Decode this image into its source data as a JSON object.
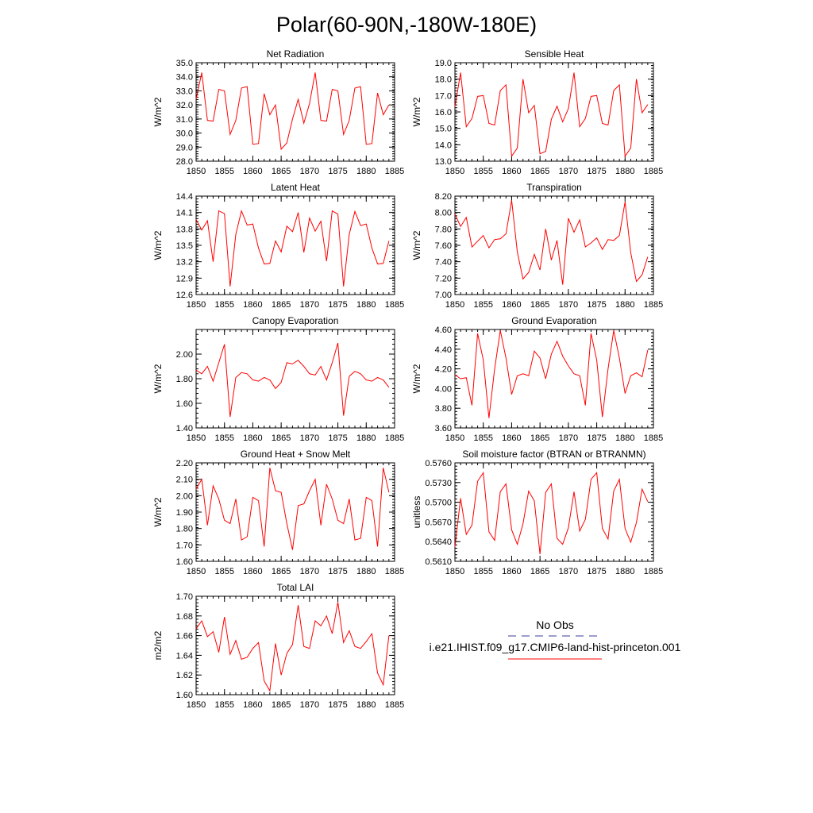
{
  "figure": {
    "title": "Polar(60-90N,-180W-180E)",
    "legend": {
      "obs_label": "No Obs",
      "obs_color": "#3b3b9b",
      "run_label": "i.e21.IHIST.f09_g17.CMIP6-land-hist-princeton.001",
      "run_color": "#ff0000",
      "placement": "bottom-right"
    }
  },
  "chart_data": [
    {
      "type": "line",
      "title": "Net Radiation",
      "ylabel": "W/m^2",
      "xlim": [
        1850,
        1885
      ],
      "ylim": [
        28.0,
        35.0
      ],
      "xticks": [
        "1850",
        "1855",
        "1860",
        "1865",
        "1870",
        "1875",
        "1880",
        "1885"
      ],
      "yticks": [
        "28.0",
        "29.0",
        "30.0",
        "31.0",
        "32.0",
        "33.0",
        "34.0",
        "35.0"
      ],
      "x": [
        1850,
        1851,
        1852,
        1853,
        1854,
        1855,
        1856,
        1857,
        1858,
        1859,
        1860,
        1861,
        1862,
        1863,
        1864,
        1865,
        1866,
        1867,
        1868,
        1869,
        1870,
        1871,
        1872,
        1873,
        1874,
        1875,
        1876,
        1877,
        1878,
        1879,
        1880,
        1881,
        1882,
        1883,
        1884
      ],
      "series": [
        {
          "values": [
            32.4,
            34.3,
            30.9,
            30.85,
            33.1,
            33.0,
            29.9,
            30.9,
            33.2,
            33.3,
            29.2,
            29.25,
            32.8,
            31.3,
            32.0,
            28.85,
            29.3,
            31.0,
            32.4,
            30.7,
            32.1,
            34.3,
            30.9,
            30.85,
            33.1,
            33.0,
            29.9,
            30.9,
            33.2,
            33.3,
            29.2,
            29.25,
            32.85,
            31.3,
            32.0
          ],
          "color": "#ff0000"
        }
      ]
    },
    {
      "type": "line",
      "title": "Sensible Heat",
      "ylabel": "W/m^2",
      "xlim": [
        1850,
        1885
      ],
      "ylim": [
        13.0,
        19.0
      ],
      "xticks": [
        "1850",
        "1855",
        "1860",
        "1865",
        "1870",
        "1875",
        "1880",
        "1885"
      ],
      "yticks": [
        "13.0",
        "14.0",
        "15.0",
        "16.0",
        "17.0",
        "18.0",
        "19.0"
      ],
      "x": [
        1850,
        1851,
        1852,
        1853,
        1854,
        1855,
        1856,
        1857,
        1858,
        1859,
        1860,
        1861,
        1862,
        1863,
        1864,
        1865,
        1866,
        1867,
        1868,
        1869,
        1870,
        1871,
        1872,
        1873,
        1874,
        1875,
        1876,
        1877,
        1878,
        1879,
        1880,
        1881,
        1882,
        1883,
        1884
      ],
      "series": [
        {
          "values": [
            16.3,
            18.4,
            15.1,
            15.6,
            16.95,
            17.0,
            15.3,
            15.2,
            17.3,
            17.65,
            13.3,
            13.8,
            18.0,
            15.95,
            16.4,
            13.45,
            13.6,
            15.55,
            16.35,
            15.4,
            16.2,
            18.4,
            15.1,
            15.6,
            16.95,
            17.0,
            15.3,
            15.2,
            17.3,
            17.65,
            13.3,
            13.8,
            18.0,
            15.95,
            16.45
          ],
          "color": "#ff0000"
        }
      ]
    },
    {
      "type": "line",
      "title": "Latent Heat",
      "ylabel": "W/m^2",
      "xlim": [
        1850,
        1885
      ],
      "ylim": [
        12.6,
        14.4
      ],
      "xticks": [
        "1850",
        "1855",
        "1860",
        "1865",
        "1870",
        "1875",
        "1880",
        "1885"
      ],
      "yticks": [
        "12.6",
        "12.9",
        "13.2",
        "13.5",
        "13.8",
        "14.1",
        "14.4"
      ],
      "x": [
        1850,
        1851,
        1852,
        1853,
        1854,
        1855,
        1856,
        1857,
        1858,
        1859,
        1860,
        1861,
        1862,
        1863,
        1864,
        1865,
        1866,
        1867,
        1868,
        1869,
        1870,
        1871,
        1872,
        1873,
        1874,
        1875,
        1876,
        1877,
        1878,
        1879,
        1880,
        1881,
        1882,
        1883,
        1884
      ],
      "series": [
        {
          "values": [
            13.97,
            13.78,
            13.95,
            13.2,
            14.13,
            14.08,
            12.75,
            13.7,
            14.13,
            13.87,
            13.89,
            13.45,
            13.16,
            13.17,
            13.58,
            13.38,
            13.85,
            13.75,
            14.1,
            13.37,
            14.0,
            13.76,
            13.94,
            13.21,
            14.13,
            14.07,
            12.75,
            13.7,
            14.12,
            13.86,
            13.89,
            13.45,
            13.16,
            13.17,
            13.58
          ],
          "color": "#ff0000"
        }
      ]
    },
    {
      "type": "line",
      "title": "Transpiration",
      "ylabel": "W/m^2",
      "xlim": [
        1850,
        1885
      ],
      "ylim": [
        7.0,
        8.2
      ],
      "xticks": [
        "1850",
        "1855",
        "1860",
        "1865",
        "1870",
        "1875",
        "1880",
        "1885"
      ],
      "yticks": [
        "7.00",
        "7.20",
        "7.40",
        "7.60",
        "7.80",
        "8.00",
        "8.20"
      ],
      "x": [
        1850,
        1851,
        1852,
        1853,
        1854,
        1855,
        1856,
        1857,
        1858,
        1859,
        1860,
        1861,
        1862,
        1863,
        1864,
        1865,
        1866,
        1867,
        1868,
        1869,
        1870,
        1871,
        1872,
        1873,
        1874,
        1875,
        1876,
        1877,
        1878,
        1879,
        1880,
        1881,
        1882,
        1883,
        1884
      ],
      "series": [
        {
          "values": [
            7.98,
            7.83,
            7.94,
            7.58,
            7.65,
            7.72,
            7.57,
            7.67,
            7.68,
            7.74,
            8.15,
            7.52,
            7.19,
            7.27,
            7.49,
            7.3,
            7.8,
            7.42,
            7.66,
            7.12,
            7.93,
            7.76,
            7.91,
            7.58,
            7.63,
            7.69,
            7.55,
            7.67,
            7.66,
            7.72,
            8.13,
            7.51,
            7.16,
            7.24,
            7.46
          ],
          "color": "#ff0000"
        }
      ]
    },
    {
      "type": "line",
      "title": "Canopy Evaporation",
      "ylabel": "W/m^2",
      "xlim": [
        1850,
        1885
      ],
      "ylim": [
        1.4,
        2.2
      ],
      "xticks": [
        "1850",
        "1855",
        "1860",
        "1865",
        "1870",
        "1875",
        "1880",
        "1885"
      ],
      "yticks": [
        "1.40",
        "1.60",
        "1.80",
        "2.00"
      ],
      "x": [
        1850,
        1851,
        1852,
        1853,
        1854,
        1855,
        1856,
        1857,
        1858,
        1859,
        1860,
        1861,
        1862,
        1863,
        1864,
        1865,
        1866,
        1867,
        1868,
        1869,
        1870,
        1871,
        1872,
        1873,
        1874,
        1875,
        1876,
        1877,
        1878,
        1879,
        1880,
        1881,
        1882,
        1883,
        1884
      ],
      "series": [
        {
          "values": [
            1.87,
            1.84,
            1.9,
            1.78,
            1.93,
            2.08,
            1.49,
            1.81,
            1.85,
            1.84,
            1.79,
            1.78,
            1.81,
            1.79,
            1.72,
            1.77,
            1.93,
            1.92,
            1.95,
            1.9,
            1.84,
            1.83,
            1.9,
            1.79,
            1.93,
            2.09,
            1.5,
            1.82,
            1.86,
            1.84,
            1.79,
            1.78,
            1.81,
            1.79,
            1.73
          ],
          "color": "#ff0000"
        }
      ]
    },
    {
      "type": "line",
      "title": "Ground Evaporation",
      "ylabel": "W/m^2",
      "xlim": [
        1850,
        1885
      ],
      "ylim": [
        3.6,
        4.6
      ],
      "xticks": [
        "1850",
        "1855",
        "1860",
        "1865",
        "1870",
        "1875",
        "1880",
        "1885"
      ],
      "yticks": [
        "3.60",
        "3.80",
        "4.00",
        "4.20",
        "4.40",
        "4.60"
      ],
      "x": [
        1850,
        1851,
        1852,
        1853,
        1854,
        1855,
        1856,
        1857,
        1858,
        1859,
        1860,
        1861,
        1862,
        1863,
        1864,
        1865,
        1866,
        1867,
        1868,
        1869,
        1870,
        1871,
        1872,
        1873,
        1874,
        1875,
        1876,
        1877,
        1878,
        1879,
        1880,
        1881,
        1882,
        1883,
        1884
      ],
      "series": [
        {
          "values": [
            4.14,
            4.1,
            4.11,
            3.83,
            4.56,
            4.29,
            3.7,
            4.2,
            4.59,
            4.31,
            3.94,
            4.13,
            4.15,
            4.13,
            4.38,
            4.31,
            4.1,
            4.35,
            4.48,
            4.33,
            4.23,
            4.15,
            4.13,
            3.83,
            4.56,
            4.29,
            3.71,
            4.2,
            4.59,
            4.31,
            3.95,
            4.13,
            4.16,
            4.12,
            4.39
          ],
          "color": "#ff0000"
        }
      ]
    },
    {
      "type": "line",
      "title": "Ground Heat + Snow Melt",
      "ylabel": "W/m^2",
      "xlim": [
        1850,
        1885
      ],
      "ylim": [
        1.6,
        2.2
      ],
      "xticks": [
        "1850",
        "1855",
        "1860",
        "1865",
        "1870",
        "1875",
        "1880",
        "1885"
      ],
      "yticks": [
        "1.60",
        "1.70",
        "1.80",
        "1.90",
        "2.00",
        "2.10",
        "2.20"
      ],
      "x": [
        1850,
        1851,
        1852,
        1853,
        1854,
        1855,
        1856,
        1857,
        1858,
        1859,
        1860,
        1861,
        1862,
        1863,
        1864,
        1865,
        1866,
        1867,
        1868,
        1869,
        1870,
        1871,
        1872,
        1873,
        1874,
        1875,
        1876,
        1877,
        1878,
        1879,
        1880,
        1881,
        1882,
        1883,
        1884
      ],
      "series": [
        {
          "values": [
            2.04,
            2.1,
            1.82,
            2.06,
            1.98,
            1.85,
            1.83,
            1.98,
            1.73,
            1.75,
            1.99,
            1.97,
            1.69,
            2.17,
            2.03,
            2.02,
            1.83,
            1.67,
            1.94,
            1.95,
            2.03,
            2.1,
            1.82,
            2.07,
            1.98,
            1.85,
            1.83,
            1.98,
            1.73,
            1.74,
            1.99,
            1.97,
            1.69,
            2.17,
            2.02
          ],
          "color": "#ff0000"
        }
      ]
    },
    {
      "type": "line",
      "title": "Soil moisture factor (BTRAN or BTRANMN)",
      "ylabel": "unitless",
      "xlim": [
        1850,
        1885
      ],
      "ylim": [
        0.561,
        0.576
      ],
      "xticks": [
        "1850",
        "1855",
        "1860",
        "1865",
        "1870",
        "1875",
        "1880",
        "1885"
      ],
      "yticks": [
        "0.5610",
        "0.5640",
        "0.5670",
        "0.5700",
        "0.5730",
        "0.5760"
      ],
      "x": [
        1850,
        1851,
        1852,
        1853,
        1854,
        1855,
        1856,
        1857,
        1858,
        1859,
        1860,
        1861,
        1862,
        1863,
        1864,
        1865,
        1866,
        1867,
        1868,
        1869,
        1870,
        1871,
        1872,
        1873,
        1874,
        1875,
        1876,
        1877,
        1878,
        1879,
        1880,
        1881,
        1882,
        1883,
        1884
      ],
      "series": [
        {
          "values": [
            0.5632,
            0.5706,
            0.5651,
            0.5665,
            0.5732,
            0.5745,
            0.5655,
            0.5642,
            0.5716,
            0.5728,
            0.5658,
            0.5636,
            0.5667,
            0.5717,
            0.5702,
            0.5621,
            0.5715,
            0.5728,
            0.5645,
            0.5636,
            0.5661,
            0.5716,
            0.5656,
            0.5674,
            0.5735,
            0.5745,
            0.566,
            0.5644,
            0.5717,
            0.5735,
            0.566,
            0.5639,
            0.5669,
            0.572,
            0.5701
          ],
          "color": "#ff0000"
        }
      ]
    },
    {
      "type": "line",
      "title": "Total LAI",
      "ylabel": "m2/m2",
      "xlim": [
        1850,
        1885
      ],
      "ylim": [
        1.6,
        1.7
      ],
      "xticks": [
        "1850",
        "1855",
        "1860",
        "1865",
        "1870",
        "1875",
        "1880",
        "1885"
      ],
      "yticks": [
        "1.60",
        "1.62",
        "1.64",
        "1.66",
        "1.68",
        "1.70"
      ],
      "x": [
        1850,
        1851,
        1852,
        1853,
        1854,
        1855,
        1856,
        1857,
        1858,
        1859,
        1860,
        1861,
        1862,
        1863,
        1864,
        1865,
        1866,
        1867,
        1868,
        1869,
        1870,
        1871,
        1872,
        1873,
        1874,
        1875,
        1876,
        1877,
        1878,
        1879,
        1880,
        1881,
        1882,
        1883,
        1884
      ],
      "series": [
        {
          "values": [
            1.667,
            1.675,
            1.659,
            1.664,
            1.643,
            1.679,
            1.641,
            1.655,
            1.636,
            1.638,
            1.647,
            1.653,
            1.614,
            1.604,
            1.652,
            1.62,
            1.642,
            1.651,
            1.691,
            1.649,
            1.647,
            1.675,
            1.67,
            1.68,
            1.662,
            1.694,
            1.653,
            1.665,
            1.649,
            1.647,
            1.654,
            1.662,
            1.622,
            1.61,
            1.66
          ],
          "color": "#ff0000"
        }
      ]
    }
  ]
}
